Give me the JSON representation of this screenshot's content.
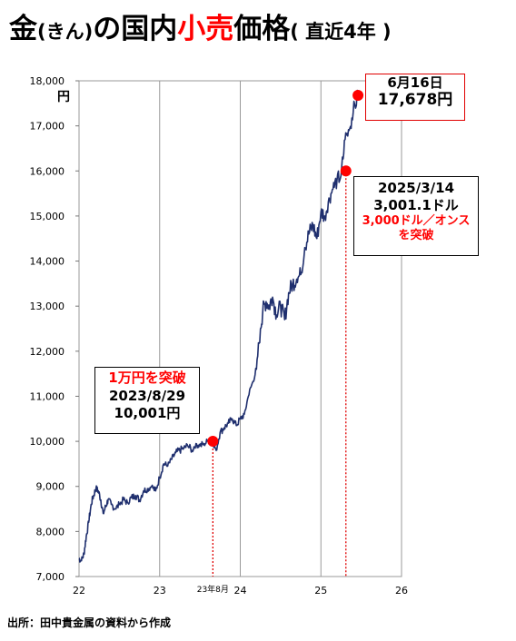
{
  "title": {
    "main1": "金",
    "paren1": "(きん)",
    "main2": "の国内",
    "main_red": "小売",
    "main3": "価格",
    "paren2": "( 直近4年 )"
  },
  "unit_label": "円",
  "source": "出所：田中貴金属の資料から作成",
  "x_extra_label": "23年8月",
  "annotations": {
    "latest": {
      "line1": "6月16日",
      "line2": "17,678円"
    },
    "breakthrough_3000": {
      "line1": "2025/3/14",
      "line2": "3,001.1ドル",
      "line3": "3,000ドル／オンス",
      "line4": "を突破"
    },
    "breakthrough_10000": {
      "line1": "1万円を突破",
      "line2": "2023/8/29",
      "line3": "10,001円"
    }
  },
  "colors": {
    "line": "#1f2f6e",
    "marker": "#ff0000",
    "title_accent": "#ff0000",
    "guide": "#e00000"
  },
  "chart_data": {
    "type": "line",
    "title": "金(きん)の国内小売価格( 直近4年 )",
    "ylabel": "円",
    "xlabel": "",
    "x_ticks": [
      "22",
      "23",
      "24",
      "25",
      "26"
    ],
    "y_ticks": [
      "7,000",
      "8,000",
      "9,000",
      "10,000",
      "11,000",
      "12,000",
      "13,000",
      "14,000",
      "15,000",
      "16,000",
      "17,000",
      "18,000"
    ],
    "xlim": [
      2022.0,
      2026.0
    ],
    "ylim": [
      7000,
      18000
    ],
    "grid": "vertical",
    "series": [
      {
        "x": [
          2022.0,
          2022.03,
          2022.06,
          2022.09,
          2022.12,
          2022.15,
          2022.18,
          2022.21,
          2022.24,
          2022.27,
          2022.3,
          2022.33,
          2022.36,
          2022.4,
          2022.45,
          2022.5,
          2022.55,
          2022.6,
          2022.65,
          2022.7,
          2022.75,
          2022.8,
          2022.85,
          2022.9,
          2022.95,
          2023.0,
          2023.05,
          2023.1,
          2023.15,
          2023.2,
          2023.25,
          2023.3,
          2023.35,
          2023.4,
          2023.45,
          2023.5,
          2023.55,
          2023.6,
          2023.66,
          2023.7,
          2023.75,
          2023.8,
          2023.85,
          2023.9,
          2023.95,
          2024.0,
          2024.05,
          2024.1,
          2024.15,
          2024.2,
          2024.25,
          2024.28,
          2024.32,
          2024.36,
          2024.4,
          2024.45,
          2024.5,
          2024.55,
          2024.6,
          2024.65,
          2024.7,
          2024.75,
          2024.8,
          2024.85,
          2024.9,
          2024.95,
          2025.0,
          2025.05,
          2025.1,
          2025.15,
          2025.2,
          2025.25,
          2025.3,
          2025.35,
          2025.4,
          2025.46
        ],
        "y": [
          7400,
          7350,
          7500,
          7900,
          8200,
          8600,
          8800,
          8950,
          8900,
          8700,
          8400,
          8550,
          8700,
          8600,
          8500,
          8600,
          8700,
          8650,
          8750,
          8800,
          8700,
          8900,
          8950,
          9000,
          8900,
          9200,
          9500,
          9450,
          9600,
          9750,
          9800,
          9850,
          9900,
          9800,
          9950,
          9900,
          9950,
          10000,
          10001,
          9800,
          10200,
          10300,
          10400,
          10500,
          10350,
          10500,
          10600,
          11000,
          11300,
          11600,
          12500,
          12900,
          13100,
          13000,
          13200,
          12800,
          13000,
          12700,
          13300,
          13500,
          13600,
          13700,
          14300,
          14600,
          14800,
          14500,
          15100,
          15000,
          15400,
          15600,
          15800,
          15900,
          16700,
          16900,
          17300,
          17678
        ]
      }
    ],
    "highlighted_points": [
      {
        "x": "2023/8/29",
        "y": 10001
      },
      {
        "x": "2025/3/14",
        "y": 16000
      },
      {
        "x": "6月16日",
        "y": 17678
      }
    ]
  }
}
